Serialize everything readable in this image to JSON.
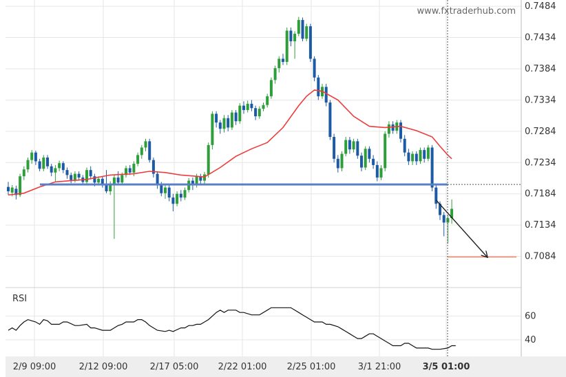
{
  "watermark": "www.fxtraderhub.com",
  "rsi_label": "RSI",
  "colors": {
    "bull": "#2e9e3a",
    "bear": "#1d5aa6",
    "ma": "#ee3b3b",
    "support": "#5a7fc4",
    "target": "#f08060",
    "rsi": "#111111",
    "grid": "#e6e6e6",
    "axis_bg": "#eeeeee"
  },
  "chart_data": {
    "type": "candlestick",
    "price_axis": {
      "ylim": [
        0.7034,
        0.7494
      ],
      "ticks": [
        "0.7484",
        "0.7434",
        "0.7384",
        "0.7334",
        "0.7284",
        "0.7234",
        "0.7184",
        "0.7134",
        "0.7084"
      ]
    },
    "rsi_axis": {
      "ylim": [
        26,
        84
      ],
      "ticks": [
        "60",
        "40"
      ]
    },
    "time_axis": {
      "ticks": [
        "2/9 09:00",
        "2/12 09:00",
        "2/17 05:00",
        "2/22 01:00",
        "2/25 01:00",
        "3/1 21:00",
        "3/5 01:00"
      ]
    },
    "support_level": 0.7199,
    "target_level": 0.7083,
    "last_time_label": "3/5 01:00",
    "projection": {
      "from_bar": 109,
      "from_price": 0.7174,
      "to_bar": 122,
      "to_price": 0.7083
    },
    "candles": [
      [
        0.7195,
        0.7188,
        0.7203,
        0.7182
      ],
      [
        0.7186,
        0.7194,
        0.7198,
        0.718
      ],
      [
        0.7192,
        0.7182,
        0.7197,
        0.7175
      ],
      [
        0.7182,
        0.7212,
        0.7216,
        0.7179
      ],
      [
        0.7212,
        0.7223,
        0.7228,
        0.7206
      ],
      [
        0.7223,
        0.7238,
        0.7242,
        0.7218
      ],
      [
        0.7238,
        0.725,
        0.7254,
        0.7232
      ],
      [
        0.725,
        0.7236,
        0.7253,
        0.723
      ],
      [
        0.7236,
        0.7224,
        0.724,
        0.722
      ],
      [
        0.7224,
        0.7242,
        0.7246,
        0.722
      ],
      [
        0.7242,
        0.7228,
        0.7246,
        0.7224
      ],
      [
        0.7228,
        0.7218,
        0.7232,
        0.7212
      ],
      [
        0.7218,
        0.7225,
        0.723,
        0.7204
      ],
      [
        0.7225,
        0.7233,
        0.7237,
        0.722
      ],
      [
        0.7233,
        0.7222,
        0.7236,
        0.7217
      ],
      [
        0.7222,
        0.7214,
        0.7226,
        0.7208
      ],
      [
        0.7214,
        0.7206,
        0.7218,
        0.7201
      ],
      [
        0.7206,
        0.7216,
        0.722,
        0.7202
      ],
      [
        0.7216,
        0.721,
        0.722,
        0.7205
      ],
      [
        0.721,
        0.7203,
        0.7214,
        0.7198
      ],
      [
        0.7203,
        0.7222,
        0.7226,
        0.72
      ],
      [
        0.7222,
        0.7212,
        0.7228,
        0.7207
      ],
      [
        0.7212,
        0.7202,
        0.7216,
        0.7196
      ],
      [
        0.7202,
        0.7208,
        0.7212,
        0.7198
      ],
      [
        0.7208,
        0.7198,
        0.7212,
        0.7194
      ],
      [
        0.7198,
        0.7188,
        0.7222,
        0.7185
      ],
      [
        0.7188,
        0.7198,
        0.7204,
        0.7182
      ],
      [
        0.7198,
        0.721,
        0.7214,
        0.7112
      ],
      [
        0.721,
        0.7202,
        0.722,
        0.7198
      ],
      [
        0.7202,
        0.7214,
        0.7218,
        0.7198
      ],
      [
        0.7214,
        0.7225,
        0.7229,
        0.721
      ],
      [
        0.7225,
        0.7218,
        0.723,
        0.7214
      ],
      [
        0.7218,
        0.7232,
        0.7236,
        0.7212
      ],
      [
        0.7232,
        0.7246,
        0.725,
        0.7228
      ],
      [
        0.7246,
        0.7258,
        0.7262,
        0.724
      ],
      [
        0.7258,
        0.7268,
        0.7272,
        0.7252
      ],
      [
        0.7268,
        0.7238,
        0.7272,
        0.7234
      ],
      [
        0.7238,
        0.7216,
        0.7242,
        0.721
      ],
      [
        0.7216,
        0.7198,
        0.722,
        0.7192
      ],
      [
        0.7198,
        0.7185,
        0.7203,
        0.718
      ],
      [
        0.7185,
        0.7194,
        0.72,
        0.7176
      ],
      [
        0.7194,
        0.7178,
        0.7198,
        0.7172
      ],
      [
        0.7178,
        0.7168,
        0.7184,
        0.7156
      ],
      [
        0.7168,
        0.7184,
        0.7188,
        0.7164
      ],
      [
        0.7184,
        0.7178,
        0.719,
        0.7172
      ],
      [
        0.7178,
        0.719,
        0.7194,
        0.7174
      ],
      [
        0.719,
        0.7205,
        0.7209,
        0.7186
      ],
      [
        0.7205,
        0.7198,
        0.721,
        0.719
      ],
      [
        0.7198,
        0.7212,
        0.7216,
        0.7194
      ],
      [
        0.7212,
        0.7205,
        0.7216,
        0.72
      ],
      [
        0.7205,
        0.7215,
        0.7219,
        0.72
      ],
      [
        0.7215,
        0.7262,
        0.7266,
        0.721
      ],
      [
        0.7262,
        0.7312,
        0.7316,
        0.7255
      ],
      [
        0.7312,
        0.7298,
        0.7316,
        0.729
      ],
      [
        0.7298,
        0.7288,
        0.7302,
        0.728
      ],
      [
        0.7288,
        0.7305,
        0.731,
        0.7282
      ],
      [
        0.7305,
        0.729,
        0.731,
        0.7284
      ],
      [
        0.729,
        0.7314,
        0.7318,
        0.7286
      ],
      [
        0.7314,
        0.73,
        0.7318,
        0.7294
      ],
      [
        0.73,
        0.7325,
        0.7329,
        0.7296
      ],
      [
        0.7325,
        0.7318,
        0.7332,
        0.7312
      ],
      [
        0.7318,
        0.7328,
        0.7333,
        0.7314
      ],
      [
        0.7328,
        0.7321,
        0.7334,
        0.7316
      ],
      [
        0.7321,
        0.7308,
        0.7325,
        0.7302
      ],
      [
        0.7308,
        0.732,
        0.7324,
        0.7304
      ],
      [
        0.732,
        0.7326,
        0.733,
        0.7316
      ],
      [
        0.7326,
        0.734,
        0.7344,
        0.7322
      ],
      [
        0.734,
        0.7366,
        0.737,
        0.7336
      ],
      [
        0.7366,
        0.7385,
        0.7389,
        0.736
      ],
      [
        0.7385,
        0.74,
        0.7404,
        0.7378
      ],
      [
        0.74,
        0.7395,
        0.7408,
        0.739
      ],
      [
        0.7395,
        0.7445,
        0.745,
        0.739
      ],
      [
        0.7445,
        0.7428,
        0.745,
        0.742
      ],
      [
        0.7428,
        0.744,
        0.7444,
        0.74
      ],
      [
        0.744,
        0.7462,
        0.7467,
        0.7436
      ],
      [
        0.7462,
        0.7432,
        0.7466,
        0.7428
      ],
      [
        0.7432,
        0.7452,
        0.7456,
        0.7428
      ],
      [
        0.7452,
        0.74,
        0.7456,
        0.7395
      ],
      [
        0.74,
        0.737,
        0.7404,
        0.7364
      ],
      [
        0.737,
        0.734,
        0.7374,
        0.7334
      ],
      [
        0.734,
        0.7355,
        0.736,
        0.7336
      ],
      [
        0.7355,
        0.733,
        0.736,
        0.7324
      ],
      [
        0.733,
        0.7275,
        0.7334,
        0.727
      ],
      [
        0.7275,
        0.724,
        0.728,
        0.7234
      ],
      [
        0.724,
        0.7225,
        0.7246,
        0.7218
      ],
      [
        0.7225,
        0.7248,
        0.7252,
        0.722
      ],
      [
        0.7248,
        0.727,
        0.7275,
        0.7244
      ],
      [
        0.727,
        0.7255,
        0.7275,
        0.7248
      ],
      [
        0.7255,
        0.7268,
        0.7272,
        0.725
      ],
      [
        0.7268,
        0.7245,
        0.7272,
        0.724
      ],
      [
        0.7245,
        0.7226,
        0.725,
        0.722
      ],
      [
        0.7226,
        0.7256,
        0.726,
        0.7222
      ],
      [
        0.7256,
        0.724,
        0.726,
        0.7234
      ],
      [
        0.724,
        0.723,
        0.7246,
        0.7224
      ],
      [
        0.723,
        0.721,
        0.7236,
        0.7204
      ],
      [
        0.721,
        0.7225,
        0.723,
        0.7206
      ],
      [
        0.7225,
        0.728,
        0.7284,
        0.722
      ],
      [
        0.728,
        0.7295,
        0.73,
        0.7274
      ],
      [
        0.7295,
        0.7285,
        0.73,
        0.728
      ],
      [
        0.7285,
        0.7298,
        0.7302,
        0.728
      ],
      [
        0.7298,
        0.7272,
        0.7302,
        0.7266
      ],
      [
        0.7272,
        0.725,
        0.7278,
        0.7244
      ],
      [
        0.725,
        0.7236,
        0.7256,
        0.723
      ],
      [
        0.7236,
        0.7248,
        0.7252,
        0.723
      ],
      [
        0.7248,
        0.7236,
        0.7252,
        0.723
      ],
      [
        0.7236,
        0.7254,
        0.7258,
        0.7232
      ],
      [
        0.7254,
        0.724,
        0.7258,
        0.7234
      ],
      [
        0.724,
        0.7258,
        0.7262,
        0.7236
      ],
      [
        0.7258,
        0.7194,
        0.7262,
        0.7188
      ],
      [
        0.7194,
        0.7168,
        0.7198,
        0.716
      ],
      [
        0.7168,
        0.715,
        0.7172,
        0.7142
      ],
      [
        0.715,
        0.7138,
        0.7155,
        0.7116
      ],
      [
        0.7138,
        0.7145,
        0.715,
        0.7104
      ],
      [
        0.7145,
        0.716,
        0.7175,
        0.7136
      ]
    ],
    "ma": [
      [
        0,
        0.7182
      ],
      [
        4,
        0.7185
      ],
      [
        8,
        0.7195
      ],
      [
        12,
        0.7203
      ],
      [
        16,
        0.7205
      ],
      [
        20,
        0.7207
      ],
      [
        26,
        0.7214
      ],
      [
        32,
        0.7216
      ],
      [
        36,
        0.722
      ],
      [
        40,
        0.7218
      ],
      [
        44,
        0.7214
      ],
      [
        50,
        0.7211
      ],
      [
        54,
        0.7226
      ],
      [
        58,
        0.7244
      ],
      [
        62,
        0.7256
      ],
      [
        66,
        0.7266
      ],
      [
        70,
        0.729
      ],
      [
        74,
        0.7325
      ],
      [
        76,
        0.734
      ],
      [
        78,
        0.735
      ],
      [
        80,
        0.7348
      ],
      [
        84,
        0.7334
      ],
      [
        88,
        0.7308
      ],
      [
        92,
        0.7292
      ],
      [
        96,
        0.729
      ],
      [
        100,
        0.7292
      ],
      [
        104,
        0.7285
      ],
      [
        108,
        0.7275
      ],
      [
        110,
        0.726
      ],
      [
        112,
        0.7246
      ],
      [
        113,
        0.724
      ]
    ],
    "rsi": [
      [
        0,
        48
      ],
      [
        1,
        50
      ],
      [
        2,
        48
      ],
      [
        3,
        52
      ],
      [
        4,
        55
      ],
      [
        5,
        57
      ],
      [
        6,
        56
      ],
      [
        7,
        55
      ],
      [
        8,
        53
      ],
      [
        9,
        57
      ],
      [
        10,
        56
      ],
      [
        11,
        53
      ],
      [
        13,
        53
      ],
      [
        14,
        55
      ],
      [
        15,
        55
      ],
      [
        17,
        52
      ],
      [
        18,
        52
      ],
      [
        20,
        53
      ],
      [
        21,
        50
      ],
      [
        22,
        50
      ],
      [
        24,
        48
      ],
      [
        26,
        48
      ],
      [
        27,
        50
      ],
      [
        28,
        52
      ],
      [
        29,
        53
      ],
      [
        30,
        55
      ],
      [
        32,
        55
      ],
      [
        33,
        57
      ],
      [
        34,
        57
      ],
      [
        35,
        55
      ],
      [
        36,
        52
      ],
      [
        37,
        50
      ],
      [
        38,
        48
      ],
      [
        40,
        47
      ],
      [
        41,
        48
      ],
      [
        42,
        47
      ],
      [
        44,
        50
      ],
      [
        45,
        50
      ],
      [
        46,
        52
      ],
      [
        47,
        52
      ],
      [
        48,
        53
      ],
      [
        49,
        53
      ],
      [
        50,
        55
      ],
      [
        51,
        57
      ],
      [
        52,
        60
      ],
      [
        53,
        63
      ],
      [
        54,
        65
      ],
      [
        55,
        63
      ],
      [
        56,
        65
      ],
      [
        58,
        65
      ],
      [
        59,
        63
      ],
      [
        60,
        63
      ],
      [
        62,
        61
      ],
      [
        64,
        61
      ],
      [
        65,
        63
      ],
      [
        66,
        65
      ],
      [
        67,
        67
      ],
      [
        68,
        67
      ],
      [
        69,
        67
      ],
      [
        72,
        67
      ],
      [
        73,
        65
      ],
      [
        74,
        63
      ],
      [
        75,
        61
      ],
      [
        76,
        59
      ],
      [
        77,
        57
      ],
      [
        78,
        55
      ],
      [
        80,
        55
      ],
      [
        81,
        53
      ],
      [
        82,
        53
      ],
      [
        84,
        51
      ],
      [
        85,
        49
      ],
      [
        86,
        47
      ],
      [
        87,
        45
      ],
      [
        88,
        43
      ],
      [
        89,
        41
      ],
      [
        90,
        41
      ],
      [
        91,
        43
      ],
      [
        92,
        45
      ],
      [
        93,
        45
      ],
      [
        94,
        43
      ],
      [
        95,
        41
      ],
      [
        96,
        39
      ],
      [
        97,
        37
      ],
      [
        98,
        35
      ],
      [
        100,
        35
      ],
      [
        101,
        37
      ],
      [
        102,
        37
      ],
      [
        103,
        35
      ],
      [
        104,
        33
      ],
      [
        105,
        33
      ],
      [
        107,
        33
      ],
      [
        108,
        32
      ],
      [
        110,
        32
      ],
      [
        112,
        33
      ],
      [
        113,
        35
      ],
      [
        114,
        35
      ]
    ]
  }
}
